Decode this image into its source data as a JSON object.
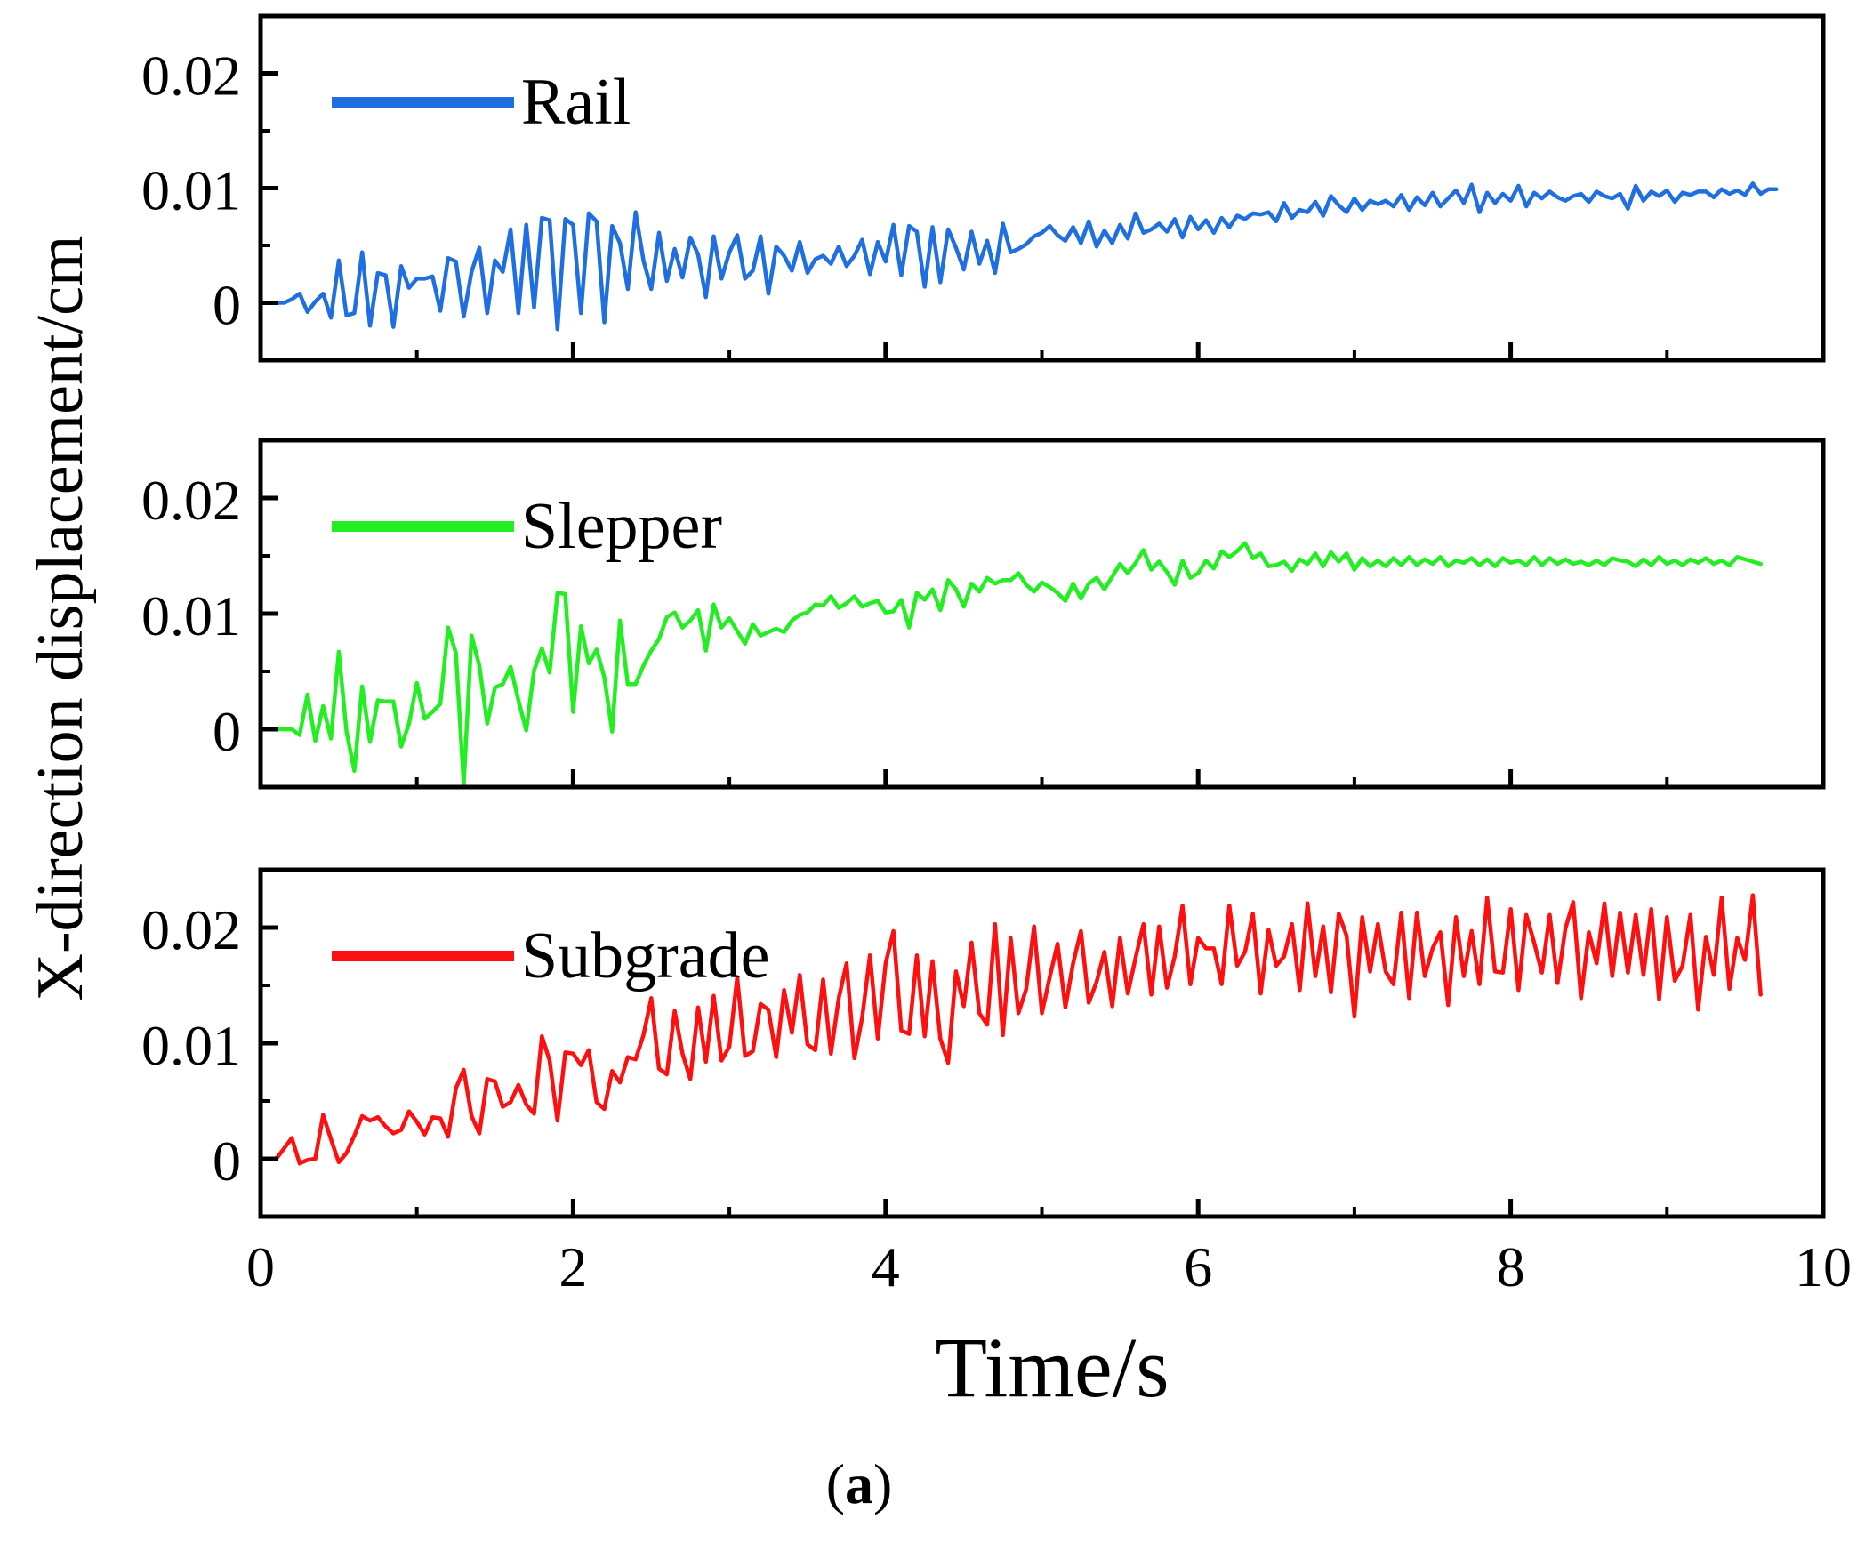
{
  "chart_data": {
    "type": "line",
    "layout": "stacked",
    "xlabel": "Time/s",
    "ylabel": "X-direction displacement/cm",
    "caption_open": "(",
    "caption_letter": "a",
    "caption_close": ")",
    "xlim": [
      0,
      10
    ],
    "ylim": [
      -0.005,
      0.025
    ],
    "x_ticks": [
      0,
      2,
      4,
      6,
      8,
      10
    ],
    "x_tick_labels": [
      "0",
      "2",
      "4",
      "6",
      "8",
      "10"
    ],
    "y_ticks": [
      0,
      0.01,
      0.02
    ],
    "y_tick_labels": [
      "0",
      "0.01",
      "0.02"
    ],
    "legend_position": "top-left",
    "series": [
      {
        "name": "Rail",
        "color": "#1f6fe0",
        "x_start": 0,
        "x_step": 0.05,
        "values": [
          0,
          0,
          0,
          0,
          0.0003,
          0.0008,
          -0.0008,
          0.0001,
          0.0008,
          -0.0013,
          0.0037,
          -0.0011,
          -0.0009,
          0.0044,
          -0.002,
          0.0026,
          0.0024,
          -0.0021,
          0.0032,
          0.0013,
          0.0021,
          0.0021,
          0.0023,
          -0.0007,
          0.0039,
          0.0036,
          -0.0012,
          0.0027,
          0.0048,
          -0.0009,
          0.0037,
          0.0027,
          0.0064,
          -0.0009,
          0.0068,
          -0.0004,
          0.0074,
          0.0072,
          -0.0023,
          0.0073,
          0.0068,
          -0.0009,
          0.0078,
          0.0071,
          -0.0017,
          0.0067,
          0.0052,
          0.0012,
          0.0079,
          0.0037,
          0.0012,
          0.0061,
          0.0019,
          0.0047,
          0.0022,
          0.0057,
          0.0042,
          0.0005,
          0.0058,
          0.0021,
          0.0044,
          0.0059,
          0.0021,
          0.0028,
          0.0058,
          0.0008,
          0.0049,
          0.0041,
          0.0028,
          0.0053,
          0.0026,
          0.0038,
          0.0041,
          0.0034,
          0.0049,
          0.0032,
          0.0041,
          0.0055,
          0.0025,
          0.0053,
          0.0036,
          0.0068,
          0.0024,
          0.0067,
          0.0062,
          0.0014,
          0.0066,
          0.0018,
          0.0064,
          0.0048,
          0.0029,
          0.0062,
          0.0034,
          0.0054,
          0.0026,
          0.0069,
          0.0044,
          0.0047,
          0.0051,
          0.0058,
          0.0061,
          0.0067,
          0.0059,
          0.0054,
          0.0066,
          0.0052,
          0.0071,
          0.0049,
          0.0063,
          0.0052,
          0.0068,
          0.0056,
          0.0078,
          0.0061,
          0.0064,
          0.0069,
          0.0062,
          0.0073,
          0.0057,
          0.0075,
          0.0064,
          0.0072,
          0.0061,
          0.0074,
          0.0066,
          0.0076,
          0.0073,
          0.0078,
          0.0077,
          0.0079,
          0.0071,
          0.0087,
          0.0074,
          0.0081,
          0.0079,
          0.0088,
          0.0076,
          0.0093,
          0.0085,
          0.0079,
          0.0091,
          0.0081,
          0.0089,
          0.0086,
          0.0089,
          0.0084,
          0.0094,
          0.0081,
          0.0092,
          0.0085,
          0.0096,
          0.0084,
          0.0091,
          0.0098,
          0.0087,
          0.0103,
          0.0079,
          0.0096,
          0.0087,
          0.0095,
          0.0089,
          0.0102,
          0.0084,
          0.0096,
          0.0091,
          0.0097,
          0.0092,
          0.0089,
          0.0093,
          0.0095,
          0.0088,
          0.0097,
          0.0093,
          0.0091,
          0.0095,
          0.0082,
          0.0102,
          0.0089,
          0.0097,
          0.0093,
          0.0098,
          0.0088,
          0.0096,
          0.0094,
          0.0097,
          0.0097,
          0.0092,
          0.0099,
          0.0095,
          0.0098,
          0.0094,
          0.0104,
          0.0095,
          0.0099,
          0.0099
        ]
      },
      {
        "name": "Slepper",
        "color": "#22ee22",
        "x_start": 0,
        "x_step": 0.05,
        "values": [
          0,
          0,
          0,
          0,
          0,
          -0.0005,
          0.003,
          -0.001,
          0.002,
          -0.0008,
          0.0067,
          -0.0002,
          -0.0036,
          0.0037,
          -0.0011,
          0.0025,
          0.0024,
          0.0024,
          -0.0015,
          0.0005,
          0.004,
          0.0009,
          0.0015,
          0.0022,
          0.0088,
          0.0066,
          -0.0048,
          0.0081,
          0.0055,
          0.0005,
          0.0036,
          0.0039,
          0.0054,
          0.0025,
          -0.0001,
          0.0051,
          0.007,
          0.0049,
          0.0118,
          0.0117,
          0.0015,
          0.0089,
          0.0057,
          0.0069,
          0.0045,
          -0.0002,
          0.0094,
          0.0039,
          0.0039,
          0.0055,
          0.0068,
          0.0078,
          0.0097,
          0.0101,
          0.0088,
          0.0094,
          0.0103,
          0.0068,
          0.0108,
          0.0088,
          0.0096,
          0.0085,
          0.0074,
          0.0091,
          0.0081,
          0.0084,
          0.0087,
          0.0084,
          0.0094,
          0.0099,
          0.0101,
          0.0108,
          0.0107,
          0.0115,
          0.0105,
          0.0109,
          0.0115,
          0.0106,
          0.0109,
          0.0111,
          0.0101,
          0.0102,
          0.0112,
          0.0088,
          0.0118,
          0.0112,
          0.0121,
          0.0103,
          0.0129,
          0.0121,
          0.0106,
          0.0126,
          0.0119,
          0.0131,
          0.0126,
          0.0129,
          0.0129,
          0.0135,
          0.0125,
          0.0119,
          0.0127,
          0.0123,
          0.0118,
          0.0111,
          0.0126,
          0.0113,
          0.0126,
          0.0131,
          0.0121,
          0.0132,
          0.0143,
          0.0135,
          0.0144,
          0.0155,
          0.0138,
          0.0145,
          0.0136,
          0.0125,
          0.0146,
          0.0131,
          0.0135,
          0.0146,
          0.0139,
          0.0154,
          0.0149,
          0.0154,
          0.0161,
          0.0148,
          0.0152,
          0.0141,
          0.0142,
          0.0145,
          0.0137,
          0.0147,
          0.0143,
          0.0152,
          0.0141,
          0.0153,
          0.0145,
          0.0152,
          0.0138,
          0.0148,
          0.0141,
          0.0146,
          0.0141,
          0.0148,
          0.0142,
          0.0149,
          0.0142,
          0.0147,
          0.0143,
          0.0149,
          0.0141,
          0.0146,
          0.0144,
          0.0148,
          0.0142,
          0.0147,
          0.0141,
          0.0148,
          0.0144,
          0.0146,
          0.0142,
          0.0149,
          0.0142,
          0.0148,
          0.0143,
          0.0147,
          0.0143,
          0.0145,
          0.0142,
          0.0146,
          0.0142,
          0.0148,
          0.0146,
          0.0145,
          0.0141,
          0.0147,
          0.0142,
          0.0149,
          0.0143,
          0.0146,
          0.0142,
          0.0147,
          0.0144,
          0.0148,
          0.0143,
          0.0146,
          0.0142,
          0.0149,
          0.0147,
          0.0145,
          0.0143
        ]
      },
      {
        "name": "Subgrade",
        "color": "#ff1010",
        "x_start": 0,
        "x_step": 0.05,
        "values": [
          0,
          0,
          0,
          0.0009,
          0.0018,
          -0.0004,
          -0.0001,
          0,
          0.0038,
          0.0017,
          -0.0003,
          0.0005,
          0.002,
          0.0037,
          0.0033,
          0.0036,
          0.0028,
          0.0022,
          0.0025,
          0.0041,
          0.0032,
          0.0021,
          0.0036,
          0.0035,
          0.0019,
          0.0061,
          0.0077,
          0.0037,
          0.0022,
          0.0069,
          0.0067,
          0.0045,
          0.0049,
          0.0064,
          0.0047,
          0.0039,
          0.0106,
          0.0085,
          0.0033,
          0.0092,
          0.0091,
          0.0081,
          0.0094,
          0.0049,
          0.0043,
          0.0076,
          0.0066,
          0.0088,
          0.0086,
          0.0107,
          0.0139,
          0.0078,
          0.0073,
          0.0128,
          0.0091,
          0.0069,
          0.0131,
          0.0084,
          0.0141,
          0.0085,
          0.0097,
          0.0157,
          0.0089,
          0.0093,
          0.0134,
          0.0129,
          0.0088,
          0.0146,
          0.0109,
          0.0159,
          0.0099,
          0.0094,
          0.0155,
          0.0091,
          0.0139,
          0.0169,
          0.0087,
          0.0122,
          0.0176,
          0.0104,
          0.0169,
          0.0197,
          0.0111,
          0.0108,
          0.0176,
          0.0106,
          0.0171,
          0.0104,
          0.0083,
          0.0162,
          0.0132,
          0.0187,
          0.0126,
          0.0116,
          0.0203,
          0.0107,
          0.0191,
          0.0126,
          0.0147,
          0.0201,
          0.0126,
          0.0157,
          0.0186,
          0.0131,
          0.0169,
          0.0197,
          0.0135,
          0.0153,
          0.0179,
          0.0132,
          0.0191,
          0.0143,
          0.0174,
          0.0203,
          0.0142,
          0.0201,
          0.0148,
          0.0175,
          0.0219,
          0.0151,
          0.0191,
          0.0182,
          0.0182,
          0.0151,
          0.0219,
          0.0167,
          0.0179,
          0.0212,
          0.0143,
          0.0198,
          0.0167,
          0.0175,
          0.0203,
          0.0146,
          0.0221,
          0.0158,
          0.0201,
          0.0144,
          0.0212,
          0.0193,
          0.0123,
          0.0209,
          0.0162,
          0.0203,
          0.0162,
          0.0151,
          0.0213,
          0.0139,
          0.0213,
          0.0158,
          0.0182,
          0.0196,
          0.0133,
          0.0209,
          0.0158,
          0.0197,
          0.0151,
          0.0226,
          0.0162,
          0.0161,
          0.0216,
          0.0146,
          0.0211,
          0.0187,
          0.0161,
          0.0211,
          0.0152,
          0.0199,
          0.0222,
          0.0139,
          0.0196,
          0.0169,
          0.0221,
          0.0158,
          0.0213,
          0.0161,
          0.0211,
          0.0159,
          0.0216,
          0.0138,
          0.0209,
          0.0154,
          0.0167,
          0.0211,
          0.0129,
          0.0192,
          0.0159,
          0.0226,
          0.0147,
          0.0191,
          0.0172,
          0.0228,
          0.0142
        ]
      }
    ]
  }
}
